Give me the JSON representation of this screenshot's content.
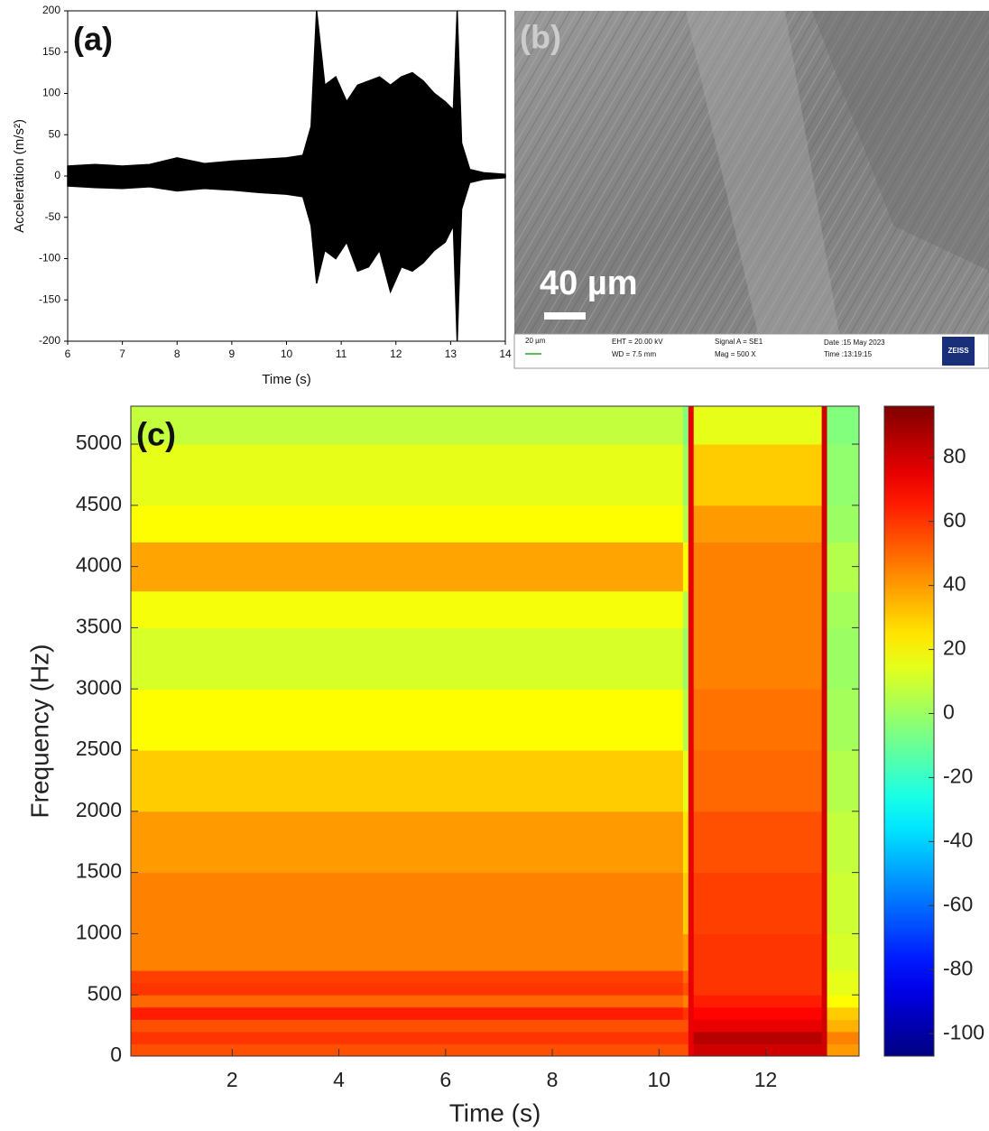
{
  "chart_data": [
    {
      "type": "area",
      "label": "(a)",
      "xlabel": "Time (s)",
      "ylabel": "Acceleration (m/s²)",
      "color": "#000000",
      "x": [
        6,
        6.5,
        7,
        7.5,
        8,
        8.5,
        9,
        9.5,
        10,
        10.3,
        10.45,
        10.55,
        10.7,
        10.9,
        11.1,
        11.3,
        11.5,
        11.7,
        11.9,
        12.1,
        12.3,
        12.5,
        12.7,
        12.9,
        13.05,
        13.12,
        13.2,
        13.35,
        13.6,
        14
      ],
      "values_max": [
        12,
        14,
        12,
        14,
        22,
        15,
        18,
        20,
        22,
        25,
        60,
        200,
        110,
        120,
        90,
        110,
        115,
        120,
        110,
        120,
        125,
        115,
        100,
        90,
        80,
        200,
        40,
        8,
        4,
        2
      ],
      "values_min": [
        -12,
        -14,
        -15,
        -13,
        -18,
        -15,
        -17,
        -20,
        -22,
        -25,
        -60,
        -130,
        -90,
        -100,
        -80,
        -115,
        -110,
        -90,
        -140,
        -110,
        -115,
        -105,
        -90,
        -80,
        -60,
        -200,
        -40,
        -8,
        -4,
        -2
      ],
      "xlim": [
        6,
        14
      ],
      "ylim": [
        -200,
        200
      ],
      "xticks": [
        6,
        7,
        8,
        9,
        10,
        11,
        12,
        13,
        14
      ],
      "yticks": [
        -200,
        -150,
        -100,
        -50,
        0,
        50,
        100,
        150,
        200
      ]
    },
    {
      "type": "heatmap",
      "label": "(c)",
      "xlabel": "Time (s)",
      "ylabel": "Frequency (Hz)",
      "colormap": "jet",
      "x_edges": [
        0.1,
        10.45,
        10.55,
        10.65,
        13.05,
        13.15,
        13.75
      ],
      "y_edges": [
        0,
        100,
        200,
        300,
        400,
        500,
        600,
        700,
        1000,
        1500,
        2000,
        2500,
        3000,
        3500,
        3800,
        4200,
        4500,
        5000,
        5310
      ],
      "z": [
        [
          55,
          55,
          75,
          80,
          80,
          40
        ],
        [
          60,
          60,
          75,
          85,
          80,
          45
        ],
        [
          55,
          55,
          75,
          75,
          80,
          35
        ],
        [
          65,
          60,
          75,
          70,
          80,
          30
        ],
        [
          50,
          45,
          75,
          65,
          80,
          20
        ],
        [
          60,
          55,
          75,
          60,
          80,
          15
        ],
        [
          58,
          50,
          75,
          60,
          80,
          15
        ],
        [
          45,
          40,
          75,
          60,
          80,
          12
        ],
        [
          45,
          30,
          75,
          58,
          80,
          10
        ],
        [
          40,
          25,
          75,
          55,
          80,
          8
        ],
        [
          30,
          15,
          75,
          50,
          80,
          5
        ],
        [
          20,
          5,
          75,
          48,
          80,
          2
        ],
        [
          12,
          0,
          75,
          45,
          80,
          0
        ],
        [
          18,
          5,
          75,
          45,
          80,
          2
        ],
        [
          38,
          20,
          75,
          45,
          80,
          5
        ],
        [
          20,
          5,
          75,
          40,
          80,
          0
        ],
        [
          15,
          0,
          75,
          30,
          80,
          -2
        ],
        [
          8,
          -5,
          75,
          15,
          80,
          -5
        ]
      ],
      "xlim": [
        0.1,
        13.75
      ],
      "ylim": [
        0,
        5310
      ],
      "xticks": [
        2,
        4,
        6,
        8,
        10,
        12
      ],
      "yticks": [
        0,
        500,
        1000,
        1500,
        2000,
        2500,
        3000,
        3500,
        4000,
        4500,
        5000
      ],
      "clim": [
        -107,
        96
      ],
      "cticks": [
        -100,
        -80,
        -60,
        -40,
        -20,
        0,
        20,
        40,
        60,
        80
      ]
    }
  ],
  "image": {
    "label": "(b)",
    "scale_bar": "40 µm",
    "small_scale": "20 µm",
    "eht": "EHT = 20.00 kV",
    "wd": "WD = 7.5 mm",
    "signal": "Signal A = SE1",
    "mag": "Mag =   500 X",
    "date": "Date :15 May 2023",
    "time": "Time :13:19:15",
    "brand": "ZEISS"
  }
}
